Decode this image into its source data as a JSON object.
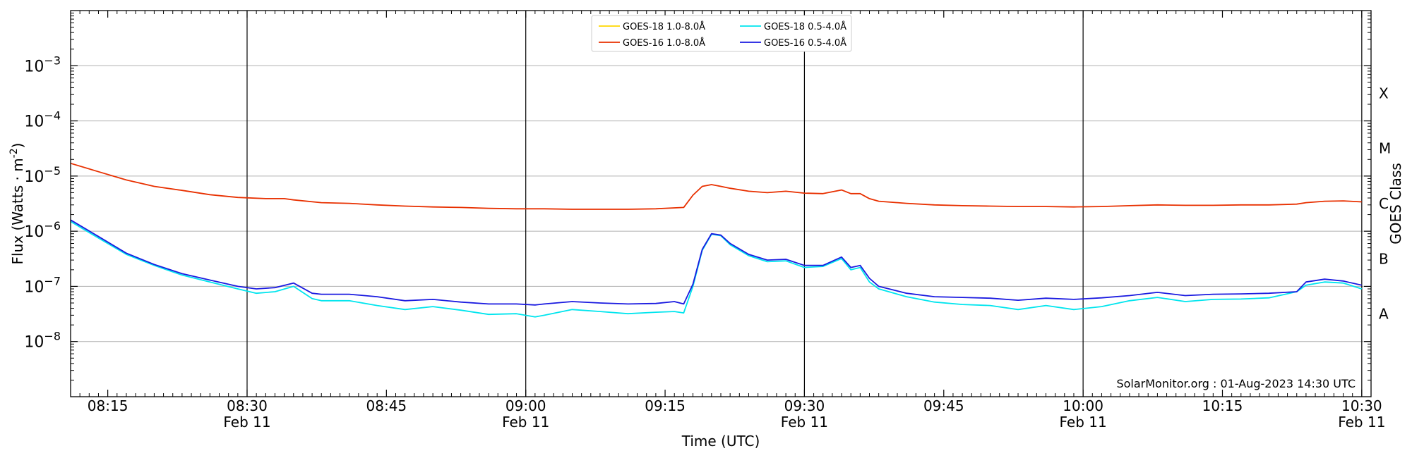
{
  "chart_data": {
    "type": "line",
    "xlabel": "Time (UTC)",
    "ylabel": "Flux (Watts · m",
    "ylabel_sup": "-2",
    "ylabel_close": ")",
    "right_label": "GOES Class",
    "yscale": "log",
    "xlim": [
      "08:11",
      "10:31"
    ],
    "ylim": [
      1e-09,
      0.01
    ],
    "y_ticks": [
      {
        "exp": -8,
        "base": "10",
        "sup": "−8"
      },
      {
        "exp": -7,
        "base": "10",
        "sup": "−7"
      },
      {
        "exp": -6,
        "base": "10",
        "sup": "−6"
      },
      {
        "exp": -5,
        "base": "10",
        "sup": "−5"
      },
      {
        "exp": -4,
        "base": "10",
        "sup": "−4"
      },
      {
        "exp": -3,
        "base": "10",
        "sup": "−3"
      }
    ],
    "x_ticks": [
      {
        "time": "08:15",
        "label": "08:15",
        "date": ""
      },
      {
        "time": "08:30",
        "label": "08:30",
        "date": "Feb 11"
      },
      {
        "time": "08:45",
        "label": "08:45",
        "date": ""
      },
      {
        "time": "09:00",
        "label": "09:00",
        "date": "Feb 11"
      },
      {
        "time": "09:15",
        "label": "09:15",
        "date": ""
      },
      {
        "time": "09:30",
        "label": "09:30",
        "date": "Feb 11"
      },
      {
        "time": "09:45",
        "label": "09:45",
        "date": ""
      },
      {
        "time": "10:00",
        "label": "10:00",
        "date": "Feb 11"
      },
      {
        "time": "10:15",
        "label": "10:15",
        "date": ""
      },
      {
        "time": "10:30",
        "label": "10:30",
        "date": "Feb 11"
      }
    ],
    "vertical_lines": [
      "08:30",
      "09:00",
      "09:30",
      "10:00",
      "10:30"
    ],
    "goes_classes": [
      {
        "label": "A",
        "exp": -7.5
      },
      {
        "label": "B",
        "exp": -6.5
      },
      {
        "label": "C",
        "exp": -5.5
      },
      {
        "label": "M",
        "exp": -4.5
      },
      {
        "label": "X",
        "exp": -3.5
      }
    ],
    "grid": "horizontal at decades",
    "legend_position": "top-center",
    "annotation": "SolarMonitor.org : 01-Aug-2023 14:30 UTC",
    "series": [
      {
        "name": "GOES-18 1.0-8.0Å",
        "color": "#ffd700",
        "x": [],
        "y": []
      },
      {
        "name": "GOES-16 1.0-8.0Å",
        "color": "#e83000",
        "x": [
          "08:11",
          "08:14",
          "08:17",
          "08:20",
          "08:23",
          "08:26",
          "08:29",
          "08:32",
          "08:34",
          "08:35",
          "08:38",
          "08:41",
          "08:44",
          "08:47",
          "08:50",
          "08:53",
          "08:56",
          "08:59",
          "09:02",
          "09:05",
          "09:08",
          "09:11",
          "09:14",
          "09:17",
          "09:18",
          "09:19",
          "09:20",
          "09:21",
          "09:22",
          "09:24",
          "09:26",
          "09:28",
          "09:30",
          "09:32",
          "09:34",
          "09:35",
          "09:36",
          "09:37",
          "09:38",
          "09:41",
          "09:44",
          "09:47",
          "09:50",
          "09:53",
          "09:56",
          "09:59",
          "10:02",
          "10:05",
          "10:08",
          "10:11",
          "10:14",
          "10:17",
          "10:20",
          "10:23",
          "10:24",
          "10:26",
          "10:28",
          "10:30"
        ],
        "y": [
          1.7e-05,
          1.2e-05,
          8.5e-06,
          6.5e-06,
          5.5e-06,
          4.6e-06,
          4.1e-06,
          3.9e-06,
          3.9e-06,
          3.7e-06,
          3.3e-06,
          3.2e-06,
          3e-06,
          2.85e-06,
          2.75e-06,
          2.7e-06,
          2.6e-06,
          2.55e-06,
          2.55e-06,
          2.5e-06,
          2.5e-06,
          2.5e-06,
          2.55e-06,
          2.7e-06,
          4.5e-06,
          6.5e-06,
          7e-06,
          6.5e-06,
          6e-06,
          5.3e-06,
          5e-06,
          5.3e-06,
          4.9e-06,
          4.8e-06,
          5.6e-06,
          4.8e-06,
          4.8e-06,
          3.9e-06,
          3.5e-06,
          3.2e-06,
          3e-06,
          2.9e-06,
          2.85e-06,
          2.8e-06,
          2.8e-06,
          2.75e-06,
          2.8e-06,
          2.9e-06,
          3e-06,
          2.95e-06,
          2.95e-06,
          3e-06,
          3e-06,
          3.1e-06,
          3.3e-06,
          3.5e-06,
          3.55e-06,
          3.4e-06
        ]
      },
      {
        "name": "GOES-18 0.5-4.0Å",
        "color": "#00e5ee",
        "x": [
          "08:11",
          "08:14",
          "08:17",
          "08:20",
          "08:23",
          "08:26",
          "08:29",
          "08:31",
          "08:33",
          "08:35",
          "08:37",
          "08:38",
          "08:41",
          "08:44",
          "08:47",
          "08:50",
          "08:53",
          "08:56",
          "08:59",
          "09:01",
          "09:02",
          "09:05",
          "09:08",
          "09:11",
          "09:14",
          "09:16",
          "09:17",
          "09:18",
          "09:19",
          "09:20",
          "09:21",
          "09:22",
          "09:24",
          "09:26",
          "09:28",
          "09:30",
          "09:32",
          "09:34",
          "09:35",
          "09:36",
          "09:37",
          "09:38",
          "09:41",
          "09:44",
          "09:47",
          "09:50",
          "09:53",
          "09:56",
          "09:59",
          "10:02",
          "10:05",
          "10:08",
          "10:11",
          "10:14",
          "10:17",
          "10:20",
          "10:23",
          "10:24",
          "10:26",
          "10:28",
          "10:30"
        ],
        "y": [
          1.5e-06,
          7.5e-07,
          3.8e-07,
          2.4e-07,
          1.6e-07,
          1.2e-07,
          9e-08,
          7.5e-08,
          8e-08,
          1e-07,
          6e-08,
          5.5e-08,
          5.5e-08,
          4.5e-08,
          3.8e-08,
          4.3e-08,
          3.7e-08,
          3.1e-08,
          3.2e-08,
          2.8e-08,
          3e-08,
          3.8e-08,
          3.5e-08,
          3.2e-08,
          3.4e-08,
          3.5e-08,
          3.3e-08,
          1e-07,
          4.5e-07,
          8.8e-07,
          8.3e-07,
          5.7e-07,
          3.6e-07,
          2.8e-07,
          2.9e-07,
          2.2e-07,
          2.3e-07,
          3.2e-07,
          2e-07,
          2.2e-07,
          1.2e-07,
          9e-08,
          6.5e-08,
          5.2e-08,
          4.7e-08,
          4.5e-08,
          3.8e-08,
          4.5e-08,
          3.8e-08,
          4.3e-08,
          5.5e-08,
          6.3e-08,
          5.3e-08,
          5.8e-08,
          5.9e-08,
          6.2e-08,
          8e-08,
          1.05e-07,
          1.2e-07,
          1.15e-07,
          9e-08
        ]
      },
      {
        "name": "GOES-16 0.5-4.0Å",
        "color": "#1a1ae0",
        "x": [
          "08:11",
          "08:14",
          "08:17",
          "08:20",
          "08:23",
          "08:26",
          "08:29",
          "08:31",
          "08:33",
          "08:35",
          "08:37",
          "08:38",
          "08:41",
          "08:44",
          "08:47",
          "08:50",
          "08:53",
          "08:56",
          "08:59",
          "09:01",
          "09:02",
          "09:05",
          "09:08",
          "09:11",
          "09:14",
          "09:16",
          "09:17",
          "09:18",
          "09:19",
          "09:20",
          "09:21",
          "09:22",
          "09:24",
          "09:26",
          "09:28",
          "09:30",
          "09:32",
          "09:34",
          "09:35",
          "09:36",
          "09:37",
          "09:38",
          "09:41",
          "09:44",
          "09:47",
          "09:50",
          "09:53",
          "09:56",
          "09:59",
          "10:02",
          "10:05",
          "10:08",
          "10:11",
          "10:14",
          "10:17",
          "10:20",
          "10:23",
          "10:24",
          "10:26",
          "10:28",
          "10:30"
        ],
        "y": [
          1.6e-06,
          8e-07,
          4e-07,
          2.5e-07,
          1.7e-07,
          1.3e-07,
          1e-07,
          9e-08,
          9.5e-08,
          1.15e-07,
          7.5e-08,
          7.2e-08,
          7.2e-08,
          6.5e-08,
          5.5e-08,
          5.8e-08,
          5.2e-08,
          4.8e-08,
          4.8e-08,
          4.6e-08,
          4.8e-08,
          5.3e-08,
          5e-08,
          4.8e-08,
          4.9e-08,
          5.3e-08,
          4.8e-08,
          1.1e-07,
          4.7e-07,
          9e-07,
          8.5e-07,
          6e-07,
          3.8e-07,
          3e-07,
          3.1e-07,
          2.4e-07,
          2.4e-07,
          3.4e-07,
          2.2e-07,
          2.4e-07,
          1.4e-07,
          1e-07,
          7.5e-08,
          6.5e-08,
          6.3e-08,
          6.1e-08,
          5.6e-08,
          6.1e-08,
          5.8e-08,
          6.2e-08,
          6.8e-08,
          7.8e-08,
          6.8e-08,
          7.2e-08,
          7.3e-08,
          7.5e-08,
          8e-08,
          1.2e-07,
          1.35e-07,
          1.25e-07,
          1.05e-07
        ]
      }
    ]
  }
}
